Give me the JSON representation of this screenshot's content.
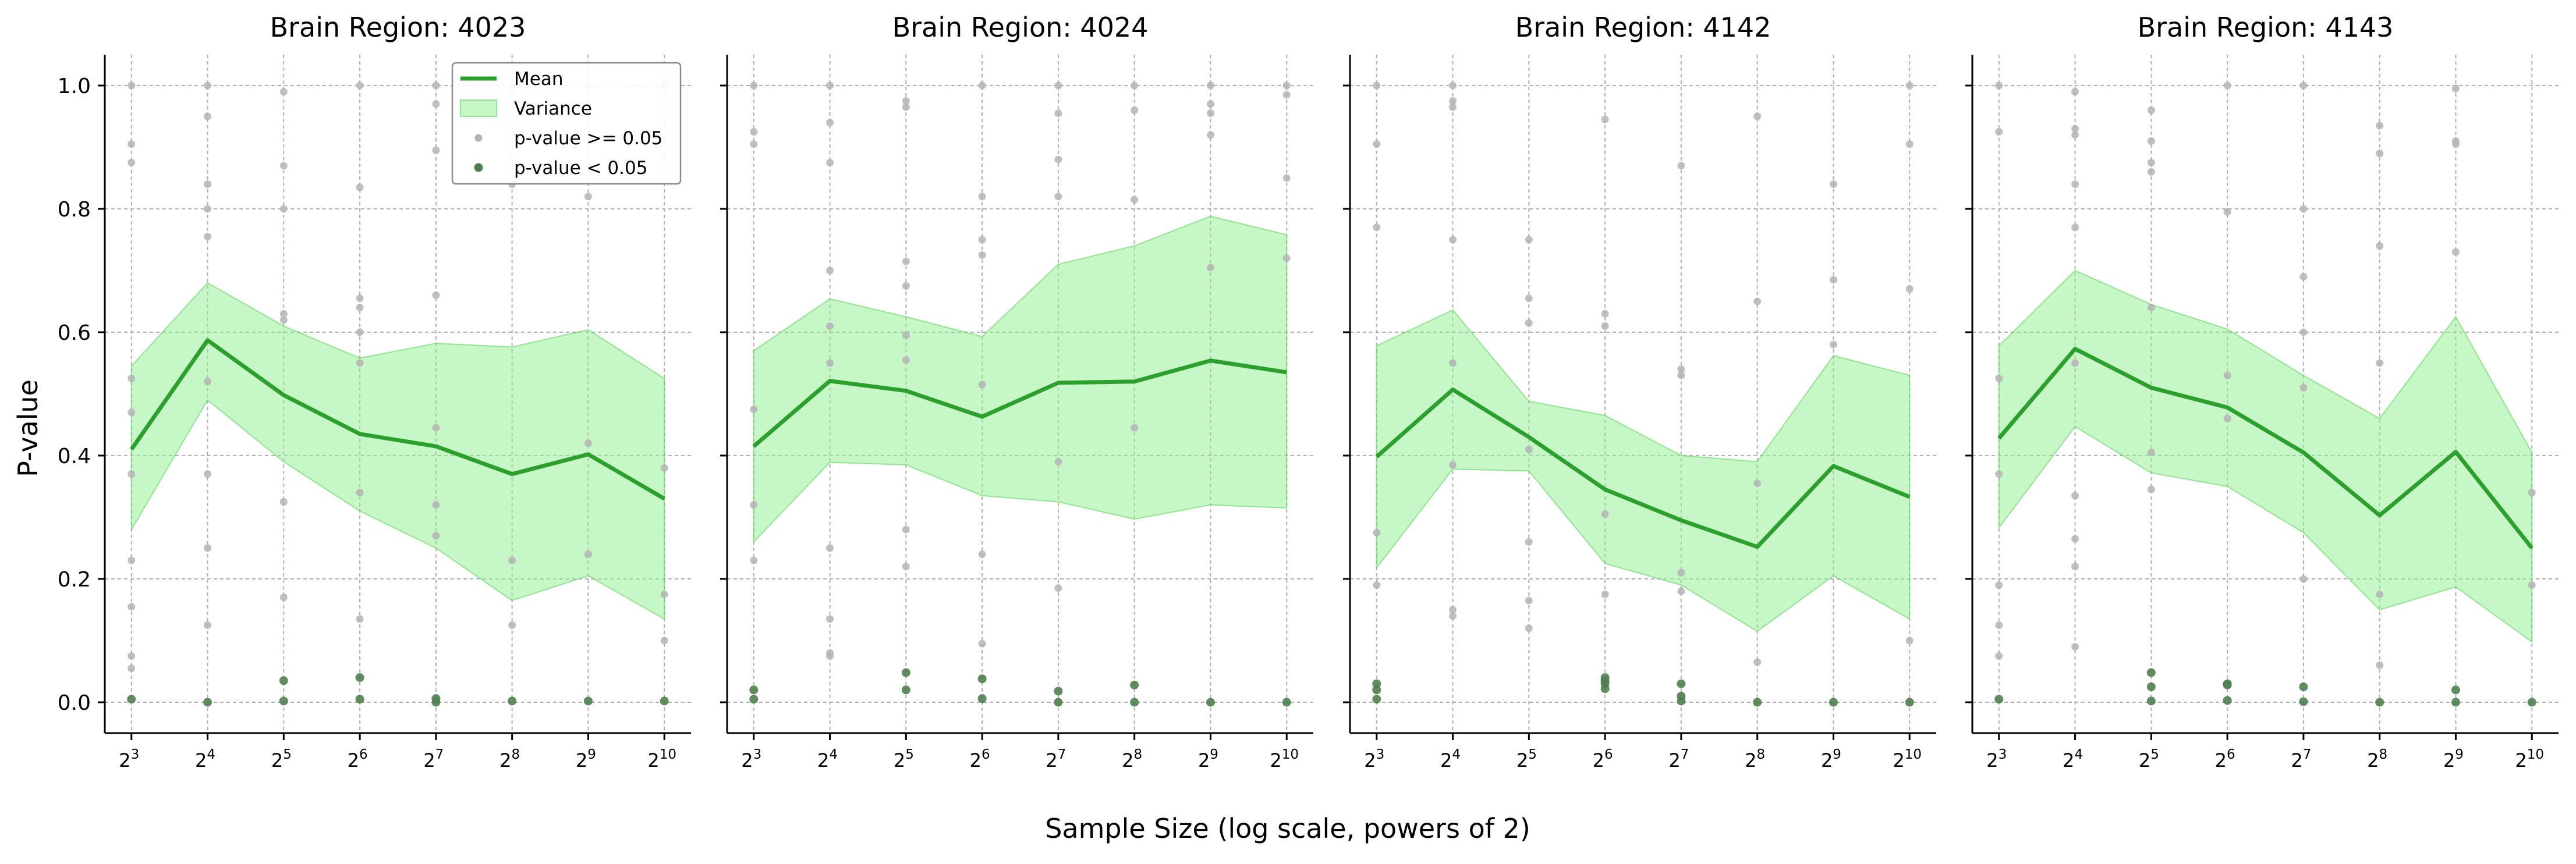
{
  "figure": {
    "xlabel": "Sample Size (log scale, powers of 2)",
    "ylabel": "P-value"
  },
  "legend": {
    "placement": "top-right of first panel",
    "items": [
      {
        "label": "Mean",
        "kind": "line"
      },
      {
        "label": "Variance",
        "kind": "patch"
      },
      {
        "label": "p-value >= 0.05",
        "kind": "dot-light"
      },
      {
        "label": "p-value < 0.05",
        "kind": "dot-dark"
      }
    ]
  },
  "colors": {
    "mean_line": "#2ca02c",
    "variance_fill": "#90ee90",
    "variance_edge": "#5fd35f",
    "dot_nonsig": "#b4b4b4",
    "dot_sig": "#4f7f4f",
    "grid": "#b0b0b0",
    "axis": "#000000"
  },
  "chart_data": [
    {
      "type": "line",
      "title": "Brain Region: 4023",
      "x_exponents": [
        3,
        4,
        5,
        6,
        7,
        8,
        9,
        10
      ],
      "x_base": 2,
      "x_log_scale": true,
      "ylim": [
        -0.05,
        1.05
      ],
      "yticks": [
        0.0,
        0.2,
        0.4,
        0.6,
        0.8,
        1.0
      ],
      "grid": true,
      "mean": [
        0.41,
        0.587,
        0.498,
        0.435,
        0.415,
        0.37,
        0.402,
        0.33
      ],
      "variance_upper": [
        0.545,
        0.68,
        0.61,
        0.558,
        0.582,
        0.576,
        0.604,
        0.525
      ],
      "variance_lower": [
        0.28,
        0.49,
        0.39,
        0.31,
        0.25,
        0.165,
        0.205,
        0.135
      ],
      "points_nonsig": [
        [
          3,
          0.905
        ],
        [
          3,
          0.875
        ],
        [
          3,
          0.525
        ],
        [
          3,
          0.47
        ],
        [
          3,
          0.37
        ],
        [
          3,
          0.23
        ],
        [
          3,
          0.155
        ],
        [
          3,
          0.075
        ],
        [
          3,
          0.055
        ],
        [
          3,
          1.0
        ],
        [
          4,
          1.0
        ],
        [
          4,
          0.95
        ],
        [
          4,
          0.84
        ],
        [
          4,
          0.8
        ],
        [
          4,
          0.755
        ],
        [
          4,
          0.52
        ],
        [
          4,
          0.37
        ],
        [
          4,
          0.25
        ],
        [
          4,
          0.125
        ],
        [
          5,
          0.99
        ],
        [
          5,
          0.87
        ],
        [
          5,
          0.8
        ],
        [
          5,
          0.63
        ],
        [
          5,
          0.62
        ],
        [
          5,
          0.325
        ],
        [
          5,
          0.17
        ],
        [
          6,
          1.0
        ],
        [
          6,
          0.835
        ],
        [
          6,
          0.655
        ],
        [
          6,
          0.64
        ],
        [
          6,
          0.6
        ],
        [
          6,
          0.55
        ],
        [
          6,
          0.34
        ],
        [
          6,
          0.135
        ],
        [
          7,
          1.0
        ],
        [
          7,
          0.97
        ],
        [
          7,
          0.895
        ],
        [
          7,
          0.66
        ],
        [
          7,
          0.445
        ],
        [
          7,
          0.32
        ],
        [
          7,
          0.27
        ],
        [
          8,
          1.0
        ],
        [
          8,
          0.84
        ],
        [
          8,
          0.23
        ],
        [
          8,
          0.125
        ],
        [
          9,
          1.0
        ],
        [
          9,
          0.955
        ],
        [
          9,
          0.82
        ],
        [
          9,
          0.42
        ],
        [
          9,
          0.24
        ],
        [
          10,
          1.0
        ],
        [
          10,
          0.38
        ],
        [
          10,
          0.175
        ],
        [
          10,
          0.1
        ]
      ],
      "points_sig": [
        [
          3,
          0.005
        ],
        [
          4,
          0.0
        ],
        [
          5,
          0.035
        ],
        [
          5,
          0.002
        ],
        [
          6,
          0.04
        ],
        [
          6,
          0.005
        ],
        [
          7,
          0.006
        ],
        [
          7,
          0.0
        ],
        [
          8,
          0.002
        ],
        [
          9,
          0.002
        ],
        [
          10,
          0.002
        ]
      ]
    },
    {
      "type": "line",
      "title": "Brain Region: 4024",
      "x_exponents": [
        3,
        4,
        5,
        6,
        7,
        8,
        9,
        10
      ],
      "x_base": 2,
      "x_log_scale": true,
      "ylim": [
        -0.05,
        1.05
      ],
      "yticks": [
        0.0,
        0.2,
        0.4,
        0.6,
        0.8,
        1.0
      ],
      "grid": true,
      "mean": [
        0.415,
        0.521,
        0.505,
        0.463,
        0.518,
        0.52,
        0.554,
        0.535
      ],
      "variance_upper": [
        0.57,
        0.654,
        0.625,
        0.593,
        0.71,
        0.74,
        0.788,
        0.758
      ],
      "variance_lower": [
        0.26,
        0.389,
        0.385,
        0.335,
        0.325,
        0.297,
        0.32,
        0.315
      ],
      "points_nonsig": [
        [
          3,
          1.0
        ],
        [
          3,
          0.925
        ],
        [
          3,
          0.905
        ],
        [
          3,
          0.475
        ],
        [
          3,
          0.32
        ],
        [
          3,
          0.23
        ],
        [
          4,
          1.0
        ],
        [
          4,
          0.94
        ],
        [
          4,
          0.875
        ],
        [
          4,
          0.7
        ],
        [
          4,
          0.61
        ],
        [
          4,
          0.55
        ],
        [
          4,
          0.25
        ],
        [
          4,
          0.135
        ],
        [
          4,
          0.08
        ],
        [
          4,
          0.075
        ],
        [
          5,
          0.975
        ],
        [
          5,
          0.965
        ],
        [
          5,
          0.715
        ],
        [
          5,
          0.675
        ],
        [
          5,
          0.595
        ],
        [
          5,
          0.555
        ],
        [
          5,
          0.28
        ],
        [
          5,
          0.22
        ],
        [
          6,
          1.0
        ],
        [
          6,
          0.82
        ],
        [
          6,
          0.75
        ],
        [
          6,
          0.725
        ],
        [
          6,
          0.515
        ],
        [
          6,
          0.24
        ],
        [
          6,
          0.095
        ],
        [
          7,
          1.0
        ],
        [
          7,
          0.955
        ],
        [
          7,
          0.88
        ],
        [
          7,
          0.82
        ],
        [
          7,
          0.39
        ],
        [
          7,
          0.185
        ],
        [
          8,
          1.0
        ],
        [
          8,
          0.96
        ],
        [
          8,
          0.815
        ],
        [
          8,
          0.445
        ],
        [
          9,
          1.0
        ],
        [
          9,
          0.97
        ],
        [
          9,
          0.955
        ],
        [
          9,
          0.92
        ],
        [
          9,
          0.705
        ],
        [
          10,
          1.0
        ],
        [
          10,
          0.985
        ],
        [
          10,
          0.85
        ],
        [
          10,
          0.72
        ]
      ],
      "points_sig": [
        [
          3,
          0.02
        ],
        [
          3,
          0.005
        ],
        [
          5,
          0.048
        ],
        [
          5,
          0.02
        ],
        [
          6,
          0.038
        ],
        [
          6,
          0.006
        ],
        [
          7,
          0.018
        ],
        [
          7,
          0.0
        ],
        [
          8,
          0.028
        ],
        [
          8,
          0.0
        ],
        [
          9,
          0.0
        ],
        [
          10,
          0.0
        ]
      ]
    },
    {
      "type": "line",
      "title": "Brain Region: 4142",
      "x_exponents": [
        3,
        4,
        5,
        6,
        7,
        8,
        9,
        10
      ],
      "x_base": 2,
      "x_log_scale": true,
      "ylim": [
        -0.05,
        1.05
      ],
      "yticks": [
        0.0,
        0.2,
        0.4,
        0.6,
        0.8,
        1.0
      ],
      "grid": true,
      "mean": [
        0.398,
        0.507,
        0.43,
        0.345,
        0.295,
        0.252,
        0.383,
        0.333
      ],
      "variance_upper": [
        0.578,
        0.636,
        0.488,
        0.465,
        0.4,
        0.39,
        0.562,
        0.53
      ],
      "variance_lower": [
        0.218,
        0.378,
        0.375,
        0.225,
        0.19,
        0.115,
        0.205,
        0.135
      ],
      "points_nonsig": [
        [
          3,
          1.0
        ],
        [
          3,
          0.905
        ],
        [
          3,
          0.77
        ],
        [
          3,
          0.275
        ],
        [
          3,
          0.19
        ],
        [
          4,
          1.0
        ],
        [
          4,
          0.975
        ],
        [
          4,
          0.965
        ],
        [
          4,
          0.75
        ],
        [
          4,
          0.55
        ],
        [
          4,
          0.385
        ],
        [
          4,
          0.15
        ],
        [
          4,
          0.14
        ],
        [
          5,
          0.75
        ],
        [
          5,
          0.655
        ],
        [
          5,
          0.615
        ],
        [
          5,
          0.41
        ],
        [
          5,
          0.26
        ],
        [
          5,
          0.165
        ],
        [
          5,
          0.12
        ],
        [
          6,
          0.945
        ],
        [
          6,
          0.63
        ],
        [
          6,
          0.61
        ],
        [
          6,
          0.305
        ],
        [
          6,
          0.175
        ],
        [
          7,
          0.87
        ],
        [
          7,
          0.54
        ],
        [
          7,
          0.53
        ],
        [
          7,
          0.21
        ],
        [
          7,
          0.18
        ],
        [
          8,
          0.95
        ],
        [
          8,
          0.65
        ],
        [
          8,
          0.355
        ],
        [
          8,
          0.065
        ],
        [
          9,
          0.84
        ],
        [
          9,
          0.685
        ],
        [
          9,
          0.58
        ],
        [
          10,
          1.0
        ],
        [
          10,
          0.905
        ],
        [
          10,
          0.67
        ],
        [
          10,
          0.1
        ]
      ],
      "points_sig": [
        [
          3,
          0.03
        ],
        [
          3,
          0.02
        ],
        [
          3,
          0.005
        ],
        [
          6,
          0.04
        ],
        [
          6,
          0.035
        ],
        [
          6,
          0.03
        ],
        [
          6,
          0.022
        ],
        [
          7,
          0.03
        ],
        [
          7,
          0.01
        ],
        [
          7,
          0.002
        ],
        [
          8,
          0.0
        ],
        [
          9,
          0.0
        ],
        [
          10,
          0.0
        ]
      ]
    },
    {
      "type": "line",
      "title": "Brain Region: 4143",
      "x_exponents": [
        3,
        4,
        5,
        6,
        7,
        8,
        9,
        10
      ],
      "x_base": 2,
      "x_log_scale": true,
      "ylim": [
        -0.05,
        1.05
      ],
      "yticks": [
        0.0,
        0.2,
        0.4,
        0.6,
        0.8,
        1.0
      ],
      "grid": true,
      "mean": [
        0.428,
        0.573,
        0.51,
        0.478,
        0.405,
        0.303,
        0.406,
        0.25
      ],
      "variance_upper": [
        0.578,
        0.7,
        0.645,
        0.605,
        0.53,
        0.46,
        0.625,
        0.405
      ],
      "variance_lower": [
        0.283,
        0.447,
        0.372,
        0.35,
        0.275,
        0.15,
        0.187,
        0.098
      ],
      "points_nonsig": [
        [
          3,
          1.0
        ],
        [
          3,
          0.925
        ],
        [
          3,
          0.525
        ],
        [
          3,
          0.37
        ],
        [
          3,
          0.19
        ],
        [
          3,
          0.125
        ],
        [
          3,
          0.075
        ],
        [
          4,
          0.99
        ],
        [
          4,
          0.93
        ],
        [
          4,
          0.92
        ],
        [
          4,
          0.84
        ],
        [
          4,
          0.77
        ],
        [
          4,
          0.55
        ],
        [
          4,
          0.335
        ],
        [
          4,
          0.265
        ],
        [
          4,
          0.22
        ],
        [
          4,
          0.09
        ],
        [
          5,
          0.96
        ],
        [
          5,
          0.91
        ],
        [
          5,
          0.875
        ],
        [
          5,
          0.86
        ],
        [
          5,
          0.64
        ],
        [
          5,
          0.405
        ],
        [
          5,
          0.345
        ],
        [
          6,
          1.0
        ],
        [
          6,
          0.795
        ],
        [
          6,
          0.53
        ],
        [
          6,
          0.46
        ],
        [
          7,
          1.0
        ],
        [
          7,
          0.8
        ],
        [
          7,
          0.69
        ],
        [
          7,
          0.6
        ],
        [
          7,
          0.51
        ],
        [
          7,
          0.2
        ],
        [
          8,
          0.935
        ],
        [
          8,
          0.89
        ],
        [
          8,
          0.74
        ],
        [
          8,
          0.55
        ],
        [
          8,
          0.175
        ],
        [
          8,
          0.06
        ],
        [
          9,
          0.995
        ],
        [
          9,
          0.91
        ],
        [
          9,
          0.905
        ],
        [
          9,
          0.73
        ],
        [
          10,
          0.34
        ],
        [
          10,
          0.19
        ]
      ],
      "points_sig": [
        [
          3,
          0.005
        ],
        [
          5,
          0.048
        ],
        [
          5,
          0.025
        ],
        [
          5,
          0.002
        ],
        [
          6,
          0.03
        ],
        [
          6,
          0.028
        ],
        [
          6,
          0.003
        ],
        [
          7,
          0.025
        ],
        [
          7,
          0.001
        ],
        [
          8,
          0.0
        ],
        [
          9,
          0.02
        ],
        [
          9,
          0.0
        ],
        [
          10,
          0.0
        ]
      ]
    }
  ]
}
